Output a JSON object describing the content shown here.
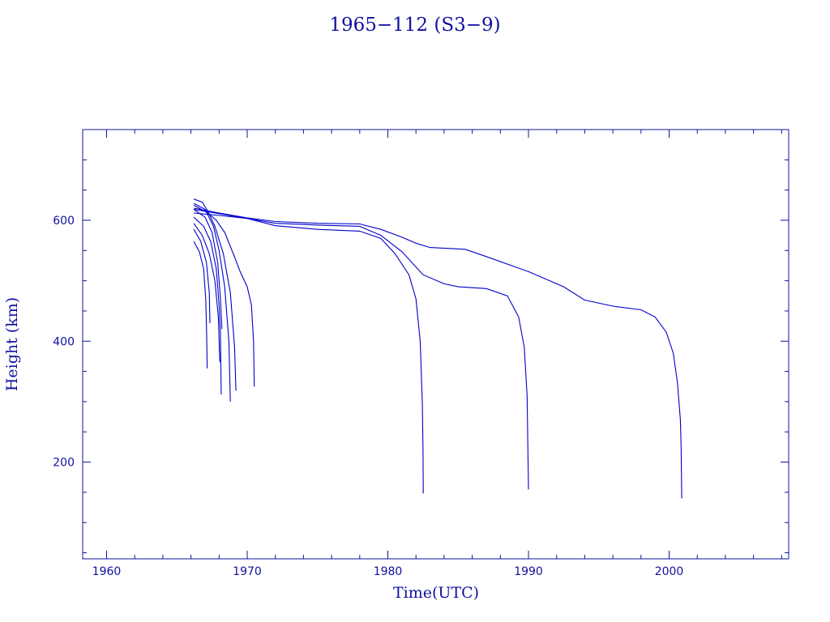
{
  "chart_data": {
    "type": "line",
    "title": "1965−112 (S3−9)",
    "xlabel": "Time(UTC)",
    "ylabel": "Height (km)",
    "xlim": [
      1958.3,
      2008.5
    ],
    "ylim": [
      40,
      750
    ],
    "x_major_ticks": [
      1960,
      1970,
      1980,
      1990,
      2000
    ],
    "x_minor_step": 2,
    "y_major_ticks": [
      200,
      400,
      600
    ],
    "y_minor_step": 50,
    "colors": {
      "axes": "#1010a0",
      "lines": "#0000cc"
    },
    "grid": false,
    "legend": "none",
    "series": [
      {
        "points": [
          [
            1966.2,
            565
          ],
          [
            1966.6,
            548
          ],
          [
            1966.9,
            520
          ],
          [
            1967.05,
            470
          ],
          [
            1967.12,
            410
          ],
          [
            1967.15,
            355
          ]
        ]
      },
      {
        "points": [
          [
            1966.2,
            585
          ],
          [
            1966.7,
            565
          ],
          [
            1967.1,
            530
          ],
          [
            1967.3,
            480
          ],
          [
            1967.35,
            430
          ]
        ]
      },
      {
        "points": [
          [
            1966.2,
            595
          ],
          [
            1966.8,
            575
          ],
          [
            1967.3,
            545
          ],
          [
            1967.7,
            500
          ],
          [
            1967.95,
            440
          ],
          [
            1968.05,
            365
          ]
        ]
      },
      {
        "points": [
          [
            1966.2,
            605
          ],
          [
            1966.9,
            590
          ],
          [
            1967.4,
            565
          ],
          [
            1967.8,
            520
          ],
          [
            1968.0,
            460
          ],
          [
            1968.1,
            410
          ],
          [
            1968.15,
            312
          ]
        ]
      },
      {
        "points": [
          [
            1966.2,
            618
          ],
          [
            1967.0,
            605
          ],
          [
            1967.5,
            580
          ],
          [
            1967.9,
            530
          ],
          [
            1968.1,
            470
          ],
          [
            1968.2,
            420
          ]
        ]
      },
      {
        "points": [
          [
            1966.2,
            628
          ],
          [
            1967.0,
            618
          ],
          [
            1967.6,
            590
          ],
          [
            1968.0,
            550
          ],
          [
            1968.4,
            490
          ],
          [
            1968.7,
            400
          ],
          [
            1968.8,
            300
          ]
        ]
      },
      {
        "points": [
          [
            1966.2,
            635
          ],
          [
            1966.8,
            630
          ],
          [
            1967.2,
            615
          ],
          [
            1967.7,
            590
          ],
          [
            1968.3,
            545
          ],
          [
            1968.8,
            480
          ],
          [
            1969.1,
            390
          ],
          [
            1969.2,
            318
          ]
        ]
      },
      {
        "points": [
          [
            1966.2,
            625
          ],
          [
            1967.2,
            612
          ],
          [
            1967.8,
            600
          ],
          [
            1968.4,
            580
          ],
          [
            1969.0,
            545
          ],
          [
            1969.5,
            515
          ],
          [
            1970.0,
            490
          ],
          [
            1970.3,
            460
          ],
          [
            1970.45,
            400
          ],
          [
            1970.5,
            325
          ]
        ]
      },
      {
        "points": [
          [
            1966.2,
            612
          ],
          [
            1968.0,
            608
          ],
          [
            1970.0,
            603
          ],
          [
            1972.0,
            591
          ],
          [
            1975.0,
            585
          ],
          [
            1978.0,
            582
          ],
          [
            1979.5,
            570
          ],
          [
            1980.5,
            545
          ],
          [
            1981.5,
            510
          ],
          [
            1982.0,
            470
          ],
          [
            1982.3,
            400
          ],
          [
            1982.45,
            300
          ],
          [
            1982.5,
            220
          ],
          [
            1982.52,
            148
          ]
        ]
      },
      {
        "points": [
          [
            1966.2,
            618
          ],
          [
            1968.0,
            611
          ],
          [
            1970.0,
            603
          ],
          [
            1972.0,
            595
          ],
          [
            1975.0,
            592
          ],
          [
            1978.0,
            590
          ],
          [
            1979.5,
            575
          ],
          [
            1981.0,
            548
          ],
          [
            1982.5,
            510
          ],
          [
            1984.0,
            495
          ],
          [
            1985.0,
            490
          ],
          [
            1987.0,
            487
          ],
          [
            1988.5,
            475
          ],
          [
            1989.3,
            440
          ],
          [
            1989.7,
            390
          ],
          [
            1989.9,
            310
          ],
          [
            1990.0,
            155
          ]
        ]
      },
      {
        "points": [
          [
            1966.2,
            620
          ],
          [
            1968.0,
            612
          ],
          [
            1970.0,
            604
          ],
          [
            1972.0,
            598
          ],
          [
            1975.0,
            595
          ],
          [
            1978.0,
            594
          ],
          [
            1979.5,
            585
          ],
          [
            1981.0,
            572
          ],
          [
            1982.0,
            562
          ],
          [
            1983.0,
            555
          ],
          [
            1985.5,
            552
          ],
          [
            1987.0,
            540
          ],
          [
            1990.0,
            515
          ],
          [
            1992.5,
            490
          ],
          [
            1994.0,
            468
          ],
          [
            1996.0,
            458
          ],
          [
            1998.0,
            452
          ],
          [
            1999.0,
            440
          ],
          [
            1999.8,
            415
          ],
          [
            2000.3,
            380
          ],
          [
            2000.6,
            330
          ],
          [
            2000.8,
            270
          ],
          [
            2000.85,
            225
          ],
          [
            2000.9,
            140
          ]
        ]
      }
    ]
  }
}
